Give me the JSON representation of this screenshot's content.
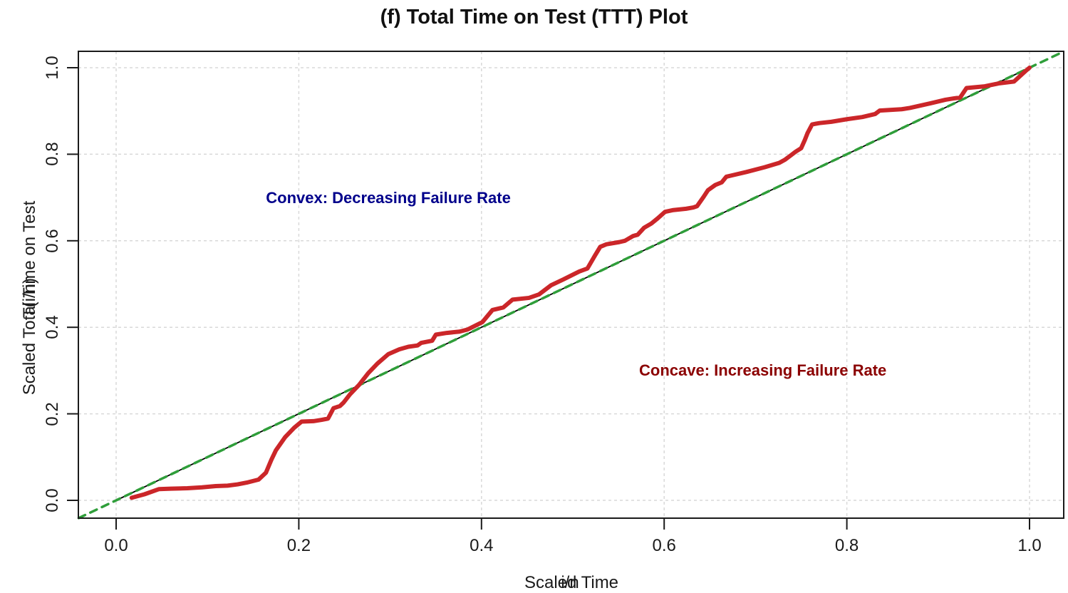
{
  "title": "(f) Total Time on Test (TTT) Plot",
  "axes": {
    "x_label": "Scaled Time",
    "x_label_overlay": "i/n",
    "y_label": "Scaled Total Time on Test",
    "y_label_overlay": "T(i/n)",
    "x_tick_labels": [
      "0.0",
      "0.2",
      "0.4",
      "0.6",
      "0.8",
      "1.0"
    ],
    "y_tick_labels": [
      "0.0",
      "0.2",
      "0.4",
      "0.6",
      "0.8",
      "1.0"
    ]
  },
  "annotations": {
    "convex": {
      "text": "Convex: Decreasing Failure Rate",
      "color": "#00008b"
    },
    "concave": {
      "text": "Concave: Increasing Failure Rate",
      "color": "#8b0000"
    }
  },
  "colors": {
    "ttt_curve": "#cb2629",
    "reference_line": "#000000",
    "dashed_diagonal": "#2f9e3a",
    "gridline": "#d9d9d9",
    "axis_box": "#1a1a1a",
    "title_text": "#111111"
  },
  "chart_data": {
    "type": "line",
    "title": "(f) Total Time on Test (TTT) Plot",
    "xlabel": "Scaled Time  (i/n)",
    "ylabel": "Scaled Total Time on Test  T(i/n)",
    "xlim": [
      -0.041,
      1.037
    ],
    "ylim": [
      -0.041,
      1.038
    ],
    "grid": true,
    "grid_style": "dashed",
    "xticks": [
      0.0,
      0.2,
      0.4,
      0.6,
      0.8,
      1.0
    ],
    "yticks": [
      0.0,
      0.2,
      0.4,
      0.6,
      0.8,
      1.0
    ],
    "series": [
      {
        "name": "diagonal-reference",
        "color": "#000000",
        "style": "solid",
        "width": 1.8,
        "x": [
          0.0,
          1.0
        ],
        "y": [
          0.0,
          1.0
        ]
      },
      {
        "name": "diagonal-dashed",
        "color": "#2f9e3a",
        "style": "dashed",
        "width": 3.5,
        "x": [
          -0.041,
          1.037
        ],
        "y": [
          -0.041,
          1.037
        ]
      },
      {
        "name": "ttt-curve",
        "color": "#cb2629",
        "style": "solid",
        "width": 6,
        "x": [
          0.017,
          0.031,
          0.047,
          0.06,
          0.078,
          0.094,
          0.109,
          0.122,
          0.133,
          0.143,
          0.156,
          0.164,
          0.17,
          0.175,
          0.185,
          0.195,
          0.203,
          0.216,
          0.225,
          0.232,
          0.238,
          0.245,
          0.249,
          0.256,
          0.266,
          0.276,
          0.286,
          0.298,
          0.31,
          0.32,
          0.33,
          0.334,
          0.346,
          0.35,
          0.362,
          0.376,
          0.385,
          0.401,
          0.412,
          0.424,
          0.434,
          0.452,
          0.463,
          0.476,
          0.49,
          0.507,
          0.516,
          0.524,
          0.53,
          0.537,
          0.551,
          0.557,
          0.566,
          0.571,
          0.578,
          0.586,
          0.593,
          0.601,
          0.61,
          0.624,
          0.632,
          0.636,
          0.643,
          0.648,
          0.656,
          0.663,
          0.668,
          0.674,
          0.69,
          0.71,
          0.726,
          0.732,
          0.739,
          0.744,
          0.75,
          0.754,
          0.757,
          0.762,
          0.77,
          0.783,
          0.8,
          0.817,
          0.831,
          0.836,
          0.86,
          0.869,
          0.892,
          0.908,
          0.917,
          0.924,
          0.931,
          0.951,
          0.967,
          0.983,
          0.996,
          1.0
        ],
        "y": [
          0.006,
          0.014,
          0.026,
          0.027,
          0.028,
          0.03,
          0.033,
          0.034,
          0.037,
          0.041,
          0.048,
          0.064,
          0.094,
          0.116,
          0.146,
          0.168,
          0.182,
          0.183,
          0.186,
          0.189,
          0.213,
          0.218,
          0.226,
          0.245,
          0.267,
          0.294,
          0.316,
          0.338,
          0.349,
          0.355,
          0.358,
          0.364,
          0.369,
          0.383,
          0.387,
          0.39,
          0.395,
          0.412,
          0.44,
          0.446,
          0.464,
          0.468,
          0.476,
          0.497,
          0.511,
          0.529,
          0.536,
          0.565,
          0.586,
          0.592,
          0.597,
          0.6,
          0.611,
          0.614,
          0.63,
          0.64,
          0.652,
          0.667,
          0.671,
          0.674,
          0.677,
          0.68,
          0.701,
          0.717,
          0.729,
          0.735,
          0.748,
          0.751,
          0.759,
          0.77,
          0.78,
          0.787,
          0.798,
          0.806,
          0.814,
          0.833,
          0.849,
          0.869,
          0.872,
          0.875,
          0.881,
          0.886,
          0.893,
          0.901,
          0.904,
          0.907,
          0.918,
          0.926,
          0.929,
          0.931,
          0.953,
          0.957,
          0.964,
          0.968,
          0.993,
          1.0
        ]
      }
    ],
    "text_annotations": [
      {
        "text": "Convex: Decreasing Failure Rate",
        "x": 0.298,
        "y": 0.699,
        "color": "#00008b"
      },
      {
        "text": "Concave: Increasing Failure Rate",
        "x": 0.708,
        "y": 0.3,
        "color": "#8b0000"
      }
    ]
  }
}
